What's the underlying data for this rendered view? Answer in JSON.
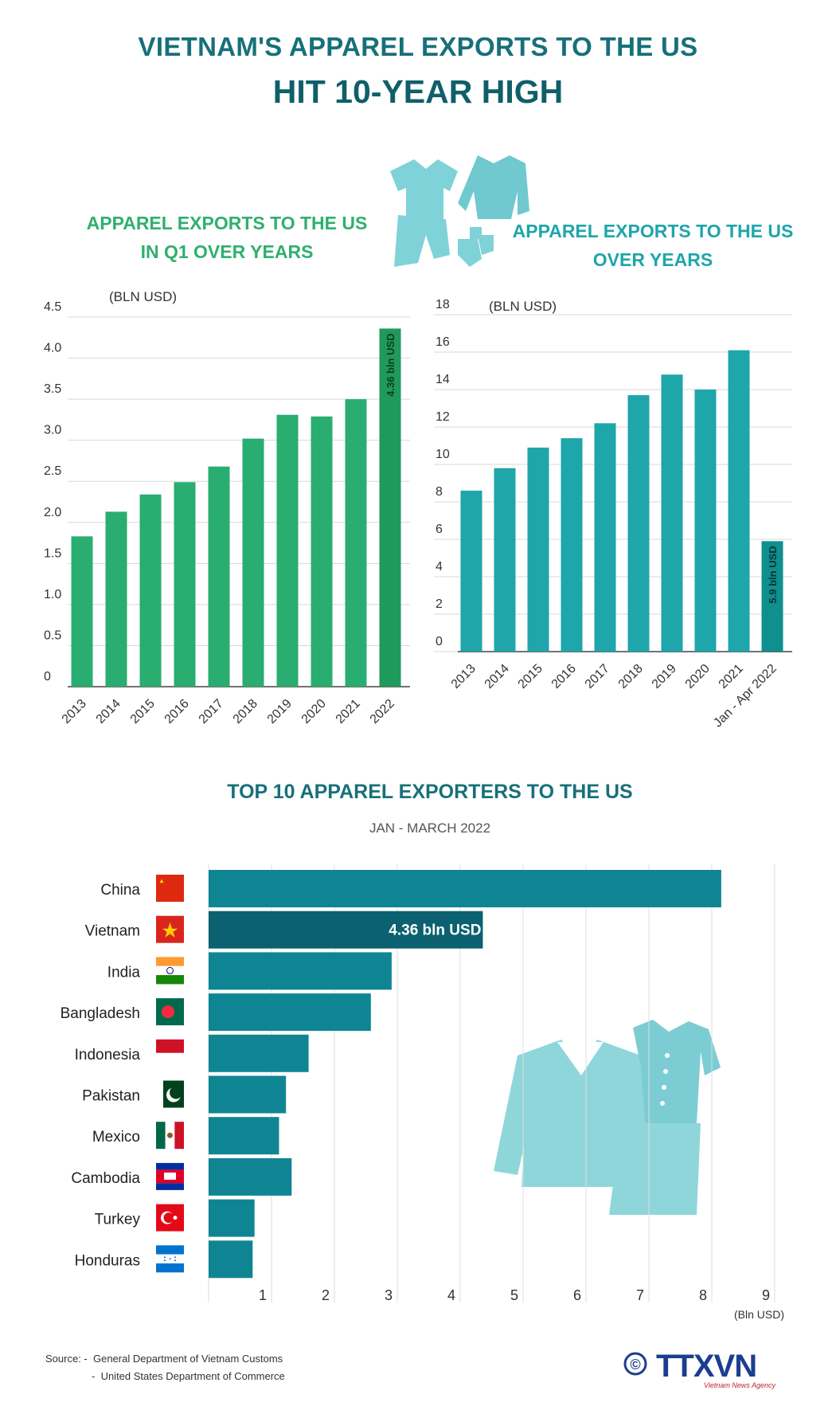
{
  "header": {
    "title_line1": "VIETNAM'S APPAREL EXPORTS TO THE US",
    "title_line2": "HIT 10-YEAR HIGH"
  },
  "colors": {
    "green": "#29ad70",
    "green_dark": "#1f9a5c",
    "teal": "#1ea6ab",
    "teal_dark": "#0f8f8e",
    "hbar": "#0f8594",
    "hbar_highlight": "#0b6170",
    "icon": "#7fd2d8"
  },
  "chart_data": [
    {
      "id": "q1",
      "type": "bar",
      "title": "APPAREL EXPORTS TO THE US\nIN Q1 OVER YEARS",
      "title_lines": [
        "APPAREL EXPORTS TO THE US",
        "IN Q1 OVER YEARS"
      ],
      "unit_label": "(BLN USD)",
      "categories": [
        "2013",
        "2014",
        "2015",
        "2016",
        "2017",
        "2018",
        "2019",
        "2020",
        "2021",
        "2022"
      ],
      "values": [
        1.83,
        2.13,
        2.34,
        2.49,
        2.68,
        3.02,
        3.31,
        3.29,
        3.5,
        4.36
      ],
      "ylim": [
        0,
        4.5
      ],
      "yticks": [
        "0",
        "0.5",
        "1.0",
        "1.5",
        "2.0",
        "2.5",
        "3.0",
        "3.5",
        "4.0",
        "4.5"
      ],
      "highlight_index": 9,
      "highlight_label": "4.36 bln USD",
      "grid": true
    },
    {
      "id": "annual",
      "type": "bar",
      "title_lines": [
        "APPAREL EXPORTS TO THE US",
        "OVER YEARS"
      ],
      "unit_label": "(BLN USD)",
      "categories": [
        "2013",
        "2014",
        "2015",
        "2016",
        "2017",
        "2018",
        "2019",
        "2020",
        "2021",
        "Jan - Apr 2022"
      ],
      "values": [
        8.6,
        9.8,
        10.9,
        11.4,
        12.2,
        13.7,
        14.8,
        14.0,
        16.1,
        5.9
      ],
      "ylim": [
        0,
        18
      ],
      "yticks": [
        "0",
        "2",
        "4",
        "6",
        "8",
        "10",
        "12",
        "14",
        "16",
        "18"
      ],
      "highlight_index": 9,
      "highlight_label": "5.9 bln USD",
      "grid": true
    },
    {
      "id": "top10",
      "type": "bar",
      "orientation": "horizontal",
      "title": "TOP 10 APPAREL EXPORTERS TO THE US",
      "subtitle": "JAN - MARCH 2022",
      "categories": [
        "China",
        "Vietnam",
        "India",
        "Bangladesh",
        "Indonesia",
        "Pakistan",
        "Mexico",
        "Cambodia",
        "Turkey",
        "Honduras"
      ],
      "values": [
        8.15,
        4.36,
        2.91,
        2.58,
        1.59,
        1.23,
        1.12,
        1.32,
        0.73,
        0.7
      ],
      "highlight_index": 1,
      "highlight_label": "4.36 bln USD",
      "xlim": [
        0,
        9
      ],
      "xticks": [
        "1",
        "2",
        "3",
        "4",
        "5",
        "6",
        "7",
        "8",
        "9"
      ],
      "xlabel": "(Bln USD)",
      "flags": [
        "china-flag-icon",
        "vietnam-flag-icon",
        "india-flag-icon",
        "bangladesh-flag-icon",
        "indonesia-flag-icon",
        "pakistan-flag-icon",
        "mexico-flag-icon",
        "cambodia-flag-icon",
        "turkey-flag-icon",
        "honduras-flag-icon"
      ],
      "grid": true
    }
  ],
  "source": {
    "prefix": "Source: -",
    "line1": "General Department of Vietnam Customs",
    "line2": "United States Department of Commerce"
  },
  "logo": {
    "text": "TTXVN",
    "sub": "Vietnam News Agency",
    "copyright": "©"
  }
}
